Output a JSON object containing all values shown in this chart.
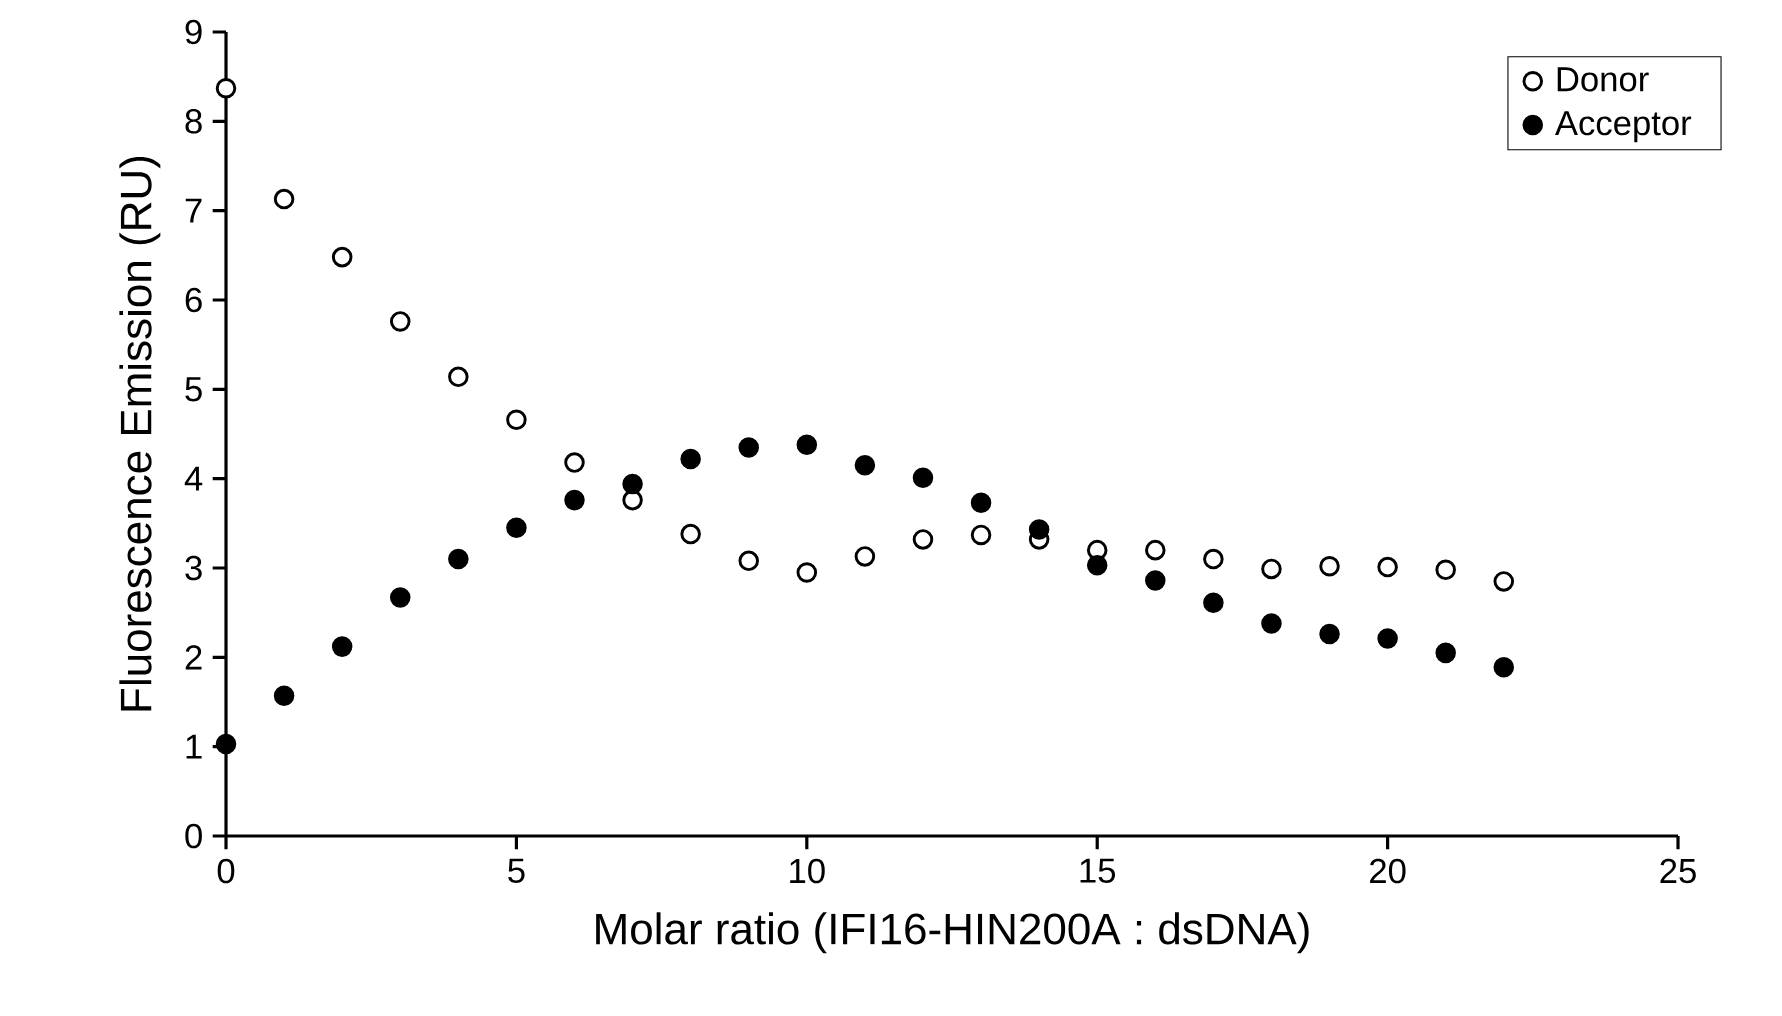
{
  "chart_data": {
    "type": "scatter",
    "xlabel": "Molar ratio (IFI16-HIN200A : dsDNA)",
    "ylabel": "Fluorescence Emission (RU)",
    "x": [
      0,
      1,
      2,
      3,
      4,
      5,
      6,
      7,
      8,
      9,
      10,
      11,
      12,
      13,
      14,
      15,
      16,
      17,
      18,
      19,
      20,
      21,
      22
    ],
    "series": [
      {
        "name": "Donor",
        "color": "#ffffff",
        "values": [
          8.37,
          7.13,
          6.48,
          5.76,
          5.14,
          4.66,
          4.18,
          3.76,
          3.38,
          3.08,
          2.95,
          3.13,
          3.32,
          3.37,
          3.32,
          3.2,
          3.2,
          3.1,
          2.99,
          3.02,
          3.01,
          2.98,
          2.85
        ]
      },
      {
        "name": "Acceptor",
        "color": "#000000",
        "values": [
          1.03,
          1.57,
          2.12,
          2.67,
          3.1,
          3.45,
          3.76,
          3.94,
          4.22,
          4.35,
          4.38,
          4.15,
          4.01,
          3.73,
          3.43,
          3.03,
          2.86,
          2.61,
          2.38,
          2.26,
          2.21,
          2.05,
          1.89
        ]
      }
    ],
    "xlim": [
      0,
      25
    ],
    "xticks": [
      0,
      5,
      10,
      15,
      20,
      25
    ],
    "ylim": [
      0,
      9
    ],
    "yticks": [
      0,
      1,
      2,
      3,
      4,
      5,
      6,
      7,
      8,
      9
    ],
    "grid": false,
    "legend": "top right"
  }
}
